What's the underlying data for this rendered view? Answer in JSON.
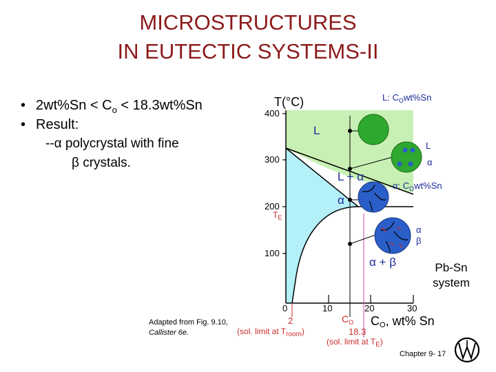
{
  "title": {
    "line1": "MICROSTRUCTURES",
    "line2": "IN EUTECTIC SYSTEMS-II"
  },
  "bullets": [
    {
      "prefix": "•",
      "text": "2wt%Sn < C",
      "sub": "o",
      "tail": " < 18.3wt%Sn"
    },
    {
      "prefix": "•",
      "text": "Result:"
    }
  ],
  "result_lines": [
    "--α polycrystal with fine",
    "β crystals."
  ],
  "caption": {
    "line1": "Adapted from Fig. 9.10,",
    "line2": "Callister 6e."
  },
  "system_label": {
    "line1": "Pb-Sn",
    "line2": "system"
  },
  "footer": "Chapter 9- 17",
  "diagram": {
    "y_axis_label": "T(°C)",
    "y_ticks": [
      "400",
      "300",
      "200",
      "100"
    ],
    "x_ticks": [
      "0",
      "10",
      "20",
      "30"
    ],
    "x_axis_label": "C",
    "x_axis_label_sub": "O",
    "x_axis_label_tail": ", wt% Sn",
    "top_label": "L: C",
    "top_label_sub": "O",
    "top_label_tail": "wt%Sn",
    "te_label": "T",
    "te_sub": "E",
    "regions": {
      "liquid": "L",
      "l_plus_alpha": "L + α",
      "alpha": "α",
      "alpha_plus_beta": "α + β"
    },
    "circle_labels": {
      "c2_l": "L",
      "c2_alpha": "α",
      "c3": "α: C",
      "c3_sub": "O",
      "c3_tail": "wt%Sn",
      "c4_alpha": "α",
      "c4_beta": "β"
    },
    "bottom": {
      "two": "2",
      "sol_room_a": "(sol. limit at T",
      "sol_room_b": "room",
      "sol_room_c": ")",
      "co": "C",
      "co_sub": "O",
      "v183": "18.3",
      "sol_te_a": "(sol. limit at T",
      "sol_te_b": "E",
      "sol_te_c": ")"
    }
  },
  "colors": {
    "title": "#8b1a1a",
    "liquid_region": "#c8f0b4",
    "alpha_region": "#b4f0f8",
    "label_red": "#cc2b2b",
    "line_magenta": "#cc44aa",
    "circle_green": "#2ea82e",
    "circle_blue": "#2a5ec8",
    "diagram_text_blue": "#1a2a9a"
  }
}
